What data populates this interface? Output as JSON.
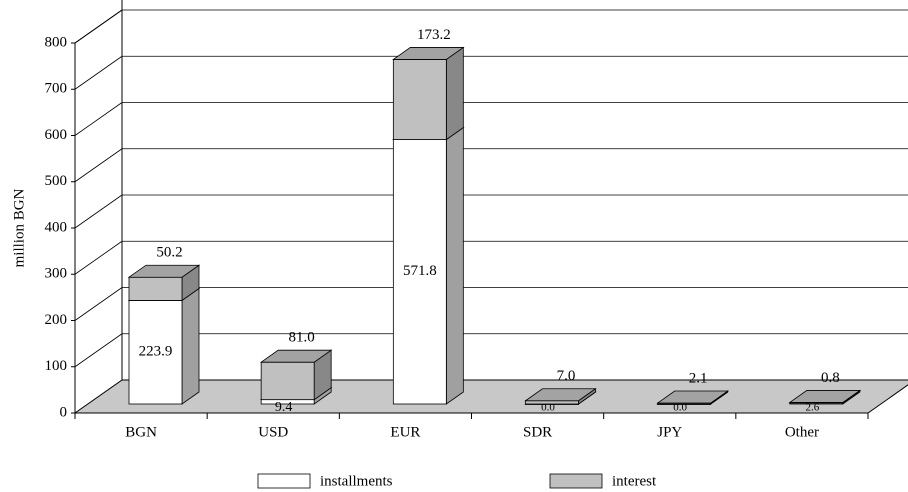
{
  "chart_data": {
    "type": "bar3d_stacked",
    "ylabel": "million BGN",
    "categories": [
      "BGN",
      "USD",
      "EUR",
      "SDR",
      "JPY",
      "Other"
    ],
    "series": [
      {
        "name": "installments",
        "color": "#ffffff",
        "values": [
          223.9,
          9.4,
          571.8,
          0.0,
          0.0,
          2.6
        ],
        "value_labels": [
          "223.9",
          "9.4",
          "571.8",
          "0.0",
          "0.0",
          "2.6"
        ]
      },
      {
        "name": "interest",
        "color": "#c0c0c0",
        "values": [
          50.2,
          81.0,
          173.2,
          7.0,
          2.1,
          0.8
        ],
        "value_labels": [
          "50.2",
          "81.0",
          "173.2",
          "7.0",
          "2.1",
          "0.8"
        ]
      }
    ],
    "ylim": [
      0,
      800
    ],
    "yticks": [
      0,
      100,
      200,
      300,
      400,
      500,
      600,
      700,
      800
    ],
    "grid": true
  }
}
